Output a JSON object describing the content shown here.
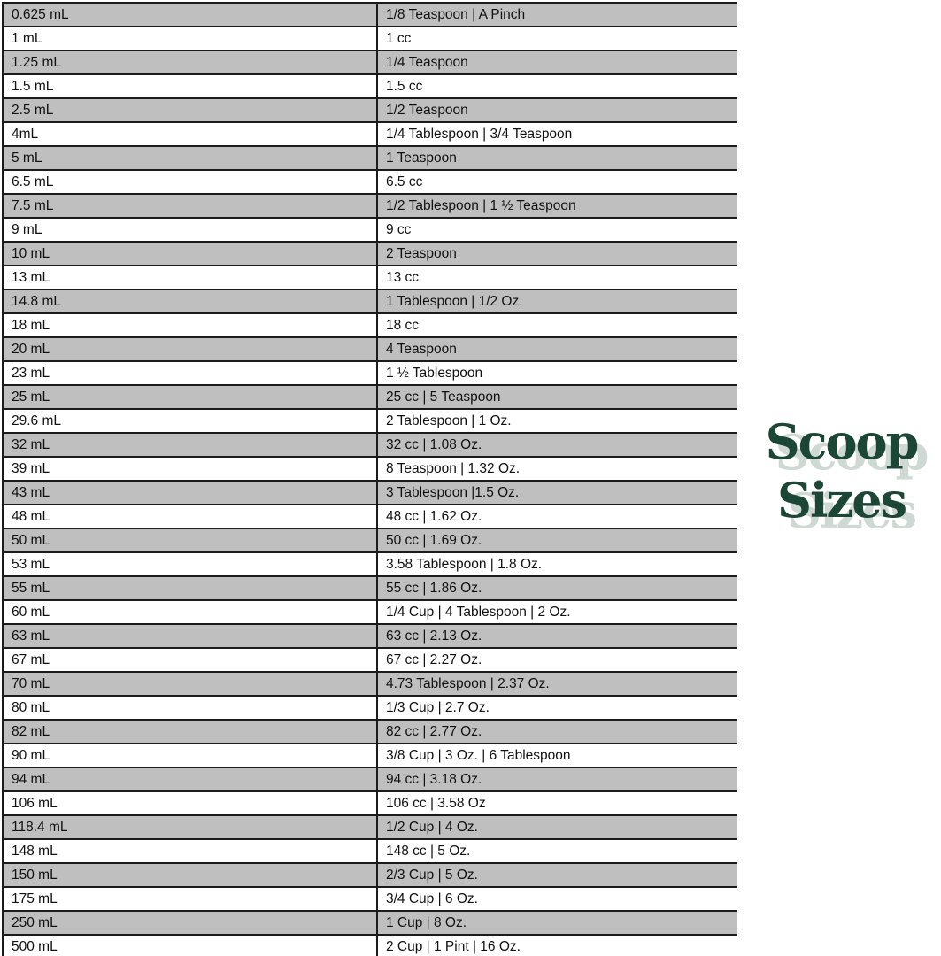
{
  "logo": {
    "line1": "Scoop",
    "line2": "Sizes",
    "text_color": "#1c4635",
    "shadow_color": "#cdd9d2"
  },
  "table": {
    "shaded_row_color": "#bfbfbf",
    "border_color": "#1b1b1b",
    "rows": [
      {
        "ml": "0.625 mL",
        "conversion": "1/8 Teaspoon | A Pinch"
      },
      {
        "ml": "1 mL",
        "conversion": "1 cc"
      },
      {
        "ml": "1.25 mL",
        "conversion": "1/4 Teaspoon"
      },
      {
        "ml": "1.5 mL",
        "conversion": "1.5 cc"
      },
      {
        "ml": "2.5 mL",
        "conversion": "1/2 Teaspoon"
      },
      {
        "ml": "4mL",
        "conversion": "1/4 Tablespoon | 3/4 Teaspoon"
      },
      {
        "ml": "5 mL",
        "conversion": "1 Teaspoon"
      },
      {
        "ml": "6.5 mL",
        "conversion": "6.5 cc"
      },
      {
        "ml": "7.5 mL",
        "conversion": "1/2 Tablespoon | 1 ½ Teaspoon"
      },
      {
        "ml": "9 mL",
        "conversion": "9 cc"
      },
      {
        "ml": "10 mL",
        "conversion": "2 Teaspoon"
      },
      {
        "ml": "13 mL",
        "conversion": "13 cc"
      },
      {
        "ml": "14.8 mL",
        "conversion": "1 Tablespoon | 1/2 Oz."
      },
      {
        "ml": "18 mL",
        "conversion": "18 cc"
      },
      {
        "ml": "20 mL",
        "conversion": "4 Teaspoon"
      },
      {
        "ml": "23 mL",
        "conversion": "1 ½ Tablespoon"
      },
      {
        "ml": "25 mL",
        "conversion": "25 cc | 5 Teaspoon"
      },
      {
        "ml": "29.6 mL",
        "conversion": "2 Tablespoon | 1 Oz."
      },
      {
        "ml": "32 mL",
        "conversion": "32 cc | 1.08 Oz."
      },
      {
        "ml": "39 mL",
        "conversion": "8 Teaspoon | 1.32 Oz."
      },
      {
        "ml": "43 mL",
        "conversion": "3 Tablespoon |1.5 Oz."
      },
      {
        "ml": "48 mL",
        "conversion": "48 cc | 1.62 Oz."
      },
      {
        "ml": "50 mL",
        "conversion": "50 cc | 1.69 Oz."
      },
      {
        "ml": "53 mL",
        "conversion": "3.58 Tablespoon | 1.8 Oz."
      },
      {
        "ml": "55 mL",
        "conversion": "55 cc | 1.86 Oz."
      },
      {
        "ml": "60 mL",
        "conversion": "1/4 Cup | 4 Tablespoon | 2 Oz."
      },
      {
        "ml": "63 mL",
        "conversion": "63 cc | 2.13 Oz."
      },
      {
        "ml": "67 mL",
        "conversion": "67 cc | 2.27 Oz."
      },
      {
        "ml": "70 mL",
        "conversion": "4.73 Tablespoon | 2.37 Oz."
      },
      {
        "ml": "80 mL",
        "conversion": "1/3 Cup | 2.7 Oz."
      },
      {
        "ml": "82 mL",
        "conversion": "82 cc | 2.77 Oz."
      },
      {
        "ml": "90 mL",
        "conversion": "3/8 Cup | 3 Oz. | 6 Tablespoon"
      },
      {
        "ml": "94 mL",
        "conversion": "94 cc | 3.18 Oz."
      },
      {
        "ml": "106 mL",
        "conversion": "106 cc | 3.58 Oz"
      },
      {
        "ml": "118.4 mL",
        "conversion": "1/2 Cup | 4 Oz."
      },
      {
        "ml": "148 mL",
        "conversion": "148 cc | 5 Oz."
      },
      {
        "ml": "150 mL",
        "conversion": "2/3 Cup | 5 Oz."
      },
      {
        "ml": "175 mL",
        "conversion": "3/4 Cup | 6 Oz."
      },
      {
        "ml": "250 mL",
        "conversion": "1 Cup | 8 Oz."
      },
      {
        "ml": "500 mL",
        "conversion": "2 Cup | 1 Pint | 16 Oz."
      }
    ]
  }
}
